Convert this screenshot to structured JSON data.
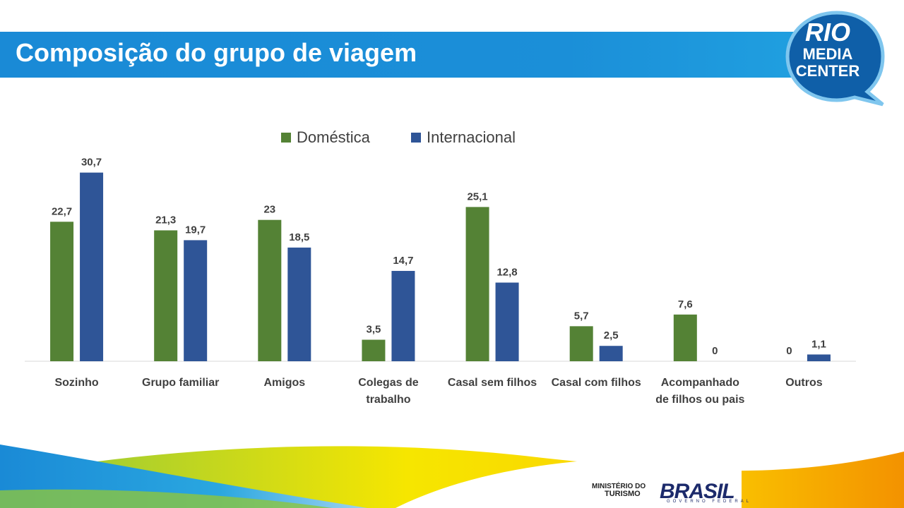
{
  "slide": {
    "title": "Composição do grupo de viagem"
  },
  "logo": {
    "line1": "RIO",
    "line2": "MEDIA",
    "line3": "CENTER"
  },
  "footer": {
    "ministerio_line1": "MINISTÉRIO DO",
    "ministerio_line2": "TURISMO",
    "brasil": "BRASIL",
    "governo": "GOVERNO FEDERAL"
  },
  "colors": {
    "title_bar": "#1a8ad6",
    "domestica": "#548235",
    "internacional": "#2f5597",
    "label_text": "#404040"
  },
  "chart_data": {
    "type": "bar",
    "categories": [
      "Sozinho",
      "Grupo familiar",
      "Amigos",
      "Colegas de trabalho",
      "Casal sem filhos",
      "Casal com filhos",
      "Acompanhado de filhos ou pais",
      "Outros"
    ],
    "category_lines": [
      [
        "Sozinho"
      ],
      [
        "Grupo familiar"
      ],
      [
        "Amigos"
      ],
      [
        "Colegas de",
        "trabalho"
      ],
      [
        "Casal sem filhos"
      ],
      [
        "Casal com filhos"
      ],
      [
        "Acompanhado",
        "de filhos ou pais"
      ],
      [
        "Outros"
      ]
    ],
    "series": [
      {
        "name": "Doméstica",
        "values": [
          22.7,
          21.3,
          23,
          3.5,
          25.1,
          5.7,
          7.6,
          0
        ],
        "labels": [
          "22,7",
          "21,3",
          "23",
          "3,5",
          "25,1",
          "5,7",
          "7,6",
          "0"
        ]
      },
      {
        "name": "Internacional",
        "values": [
          30.7,
          19.7,
          18.5,
          14.7,
          12.8,
          2.5,
          0,
          1.1
        ],
        "labels": [
          "30,7",
          "19,7",
          "18,5",
          "14,7",
          "12,8",
          "2,5",
          "0",
          "1,1"
        ]
      }
    ],
    "legend_position": "top",
    "ylim": [
      0,
      31
    ],
    "grid": false
  }
}
